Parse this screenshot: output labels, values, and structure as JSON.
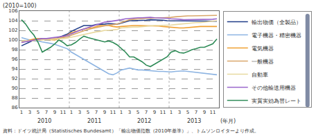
{
  "chart_data": {
    "type": "line",
    "y_label": "(2010=100)",
    "x_label": "(年月)",
    "source": "資料：ドイツ統計局（Statistisches Bundesamt）「輸出物価指数（2010年基準）」、トムソンロイターより作成。",
    "years": [
      "2010",
      "2011",
      "2012",
      "2013"
    ],
    "categories": [
      "1",
      null,
      "3",
      null,
      "5",
      null,
      "7",
      null,
      "9",
      null,
      "11",
      null,
      "1",
      null,
      "3",
      null,
      "5",
      null,
      "7",
      null,
      "9",
      null,
      "11",
      null,
      "1",
      null,
      "3",
      null,
      "5",
      null,
      "7",
      null,
      "9",
      null,
      "11",
      null,
      "1",
      null,
      "3",
      null,
      "5",
      null,
      "7",
      null,
      "9",
      null,
      "11",
      null
    ],
    "ylim": [
      86,
      106
    ],
    "yticks": [
      86,
      88,
      90,
      92,
      94,
      96,
      98,
      100,
      102,
      104,
      106
    ],
    "grid": true,
    "legend": "right",
    "series": [
      {
        "name": "輸出物価（全製品）",
        "color": "#1f3c88",
        "values": [
          98.8,
          99.2,
          99.5,
          100,
          100.2,
          100.3,
          100.2,
          100.1,
          100.2,
          100.5,
          100.8,
          101.2,
          101.8,
          102.2,
          102.6,
          103.0,
          103.0,
          103.0,
          103.2,
          103.2,
          103.3,
          103.4,
          103.3,
          103.3,
          103.5,
          103.8,
          104.0,
          104.0,
          104.0,
          104.0,
          104.1,
          104.2,
          104.2,
          104.2,
          104.1,
          104.0,
          104.0,
          104.0,
          104.0,
          104.0,
          103.9,
          103.9,
          103.9,
          103.9,
          103.9,
          103.9,
          103.9,
          103.9
        ]
      },
      {
        "name": "電子機器・精密機器",
        "color": "#8db4e2",
        "values": [
          100.5,
          100.2,
          100,
          99.8,
          99.8,
          99.6,
          99.5,
          99.3,
          99.1,
          98.8,
          98.5,
          98.2,
          97.5,
          97.0,
          96.5,
          96.0,
          95.5,
          95.0,
          94.5,
          94.0,
          93.5,
          93.0,
          92.8,
          93.2,
          93.8,
          94.0,
          94.2,
          94.0,
          93.8,
          93.8,
          93.7,
          93.7,
          93.6,
          93.5,
          93.5,
          93.4,
          93.4,
          93.5,
          93.6,
          93.6,
          93.5,
          93.4,
          93.3,
          93.2,
          93.1,
          93.0,
          92.9,
          92.8
        ]
      },
      {
        "name": "電気機器",
        "color": "#f0a030",
        "values": [
          99.5,
          99.8,
          100,
          100.2,
          100.3,
          100.2,
          100.1,
          100,
          100,
          100.3,
          100.6,
          101,
          101.5,
          101.8,
          102,
          102.3,
          102.5,
          102.5,
          102.8,
          103,
          103,
          103,
          102.8,
          102.7,
          102.8,
          102.9,
          103,
          103,
          103,
          103,
          103,
          103,
          103,
          102.9,
          102.8,
          102.7,
          102.6,
          102.5,
          102.5,
          102.5,
          102.6,
          102.7,
          102.8,
          102.8,
          102.8,
          102.8,
          102.8,
          102.8
        ]
      },
      {
        "name": "一般機器",
        "color": "#d9a66b",
        "values": [
          99.6,
          99.7,
          99.8,
          99.9,
          100,
          100.1,
          100.2,
          100.2,
          100.3,
          100.4,
          100.5,
          100.6,
          101,
          101.3,
          101.6,
          102,
          102.2,
          102.4,
          102.6,
          102.8,
          103,
          103.1,
          103.2,
          103.3,
          103.6,
          103.9,
          104.2,
          104.3,
          104.4,
          104.4,
          104.5,
          104.5,
          104.6,
          104.6,
          104.6,
          104.6,
          104.7,
          104.8,
          104.9,
          104.9,
          105,
          105,
          105,
          105,
          105,
          105,
          105,
          105.1
        ]
      },
      {
        "name": "自動車",
        "color": "#e8d9a0",
        "values": [
          99.8,
          99.8,
          99.9,
          99.9,
          100,
          100,
          100.1,
          100.1,
          100.2,
          100.2,
          100.3,
          100.4,
          100.6,
          100.8,
          101,
          101.2,
          101.3,
          101.5,
          101.7,
          101.8,
          102,
          102,
          102.1,
          102.2,
          102.5,
          102.6,
          102.7,
          102.7,
          102.7,
          102.8,
          102.9,
          102.9,
          103,
          103,
          103,
          103,
          103.1,
          103.2,
          103.3,
          103.3,
          103.4,
          103.5,
          103.6,
          103.6,
          103.7,
          103.8,
          103.9,
          104
        ]
      },
      {
        "name": "その他輸送用機器",
        "color": "#9966cc",
        "values": [
          99.5,
          99.6,
          99.8,
          100,
          100.2,
          100.3,
          100.3,
          100.4,
          100.5,
          100.6,
          100.7,
          100.9,
          101.3,
          101.7,
          102,
          102.3,
          102.6,
          102.9,
          103.2,
          103.5,
          103.7,
          103.8,
          103.9,
          104,
          104.2,
          104.4,
          104.5,
          104.6,
          104.6,
          104.6,
          104.7,
          104.7,
          104.6,
          104.6,
          104.5,
          104.5,
          104.4,
          104.4,
          104.3,
          104.2,
          104.2,
          104.2,
          104.3,
          104.3,
          104.3,
          104.3,
          104.3,
          104.4
        ]
      },
      {
        "name": "実質実効為替レート",
        "color": "#2e8b57",
        "values": [
          104.2,
          103.3,
          102,
          101,
          99.5,
          97.5,
          98,
          98.5,
          99.2,
          100,
          99.5,
          98.8,
          99,
          99.5,
          100.2,
          100.8,
          100.5,
          100.3,
          100,
          99.8,
          99.6,
          99.8,
          99.5,
          99,
          98.2,
          97.5,
          96.5,
          96.5,
          96,
          95.5,
          94.8,
          94.5,
          95,
          95.5,
          96,
          96.5,
          97.5,
          97.8,
          97.4,
          97.3,
          97.6,
          98,
          98.2,
          98.5,
          98.5,
          98.8,
          99.2,
          100.2
        ]
      }
    ]
  }
}
